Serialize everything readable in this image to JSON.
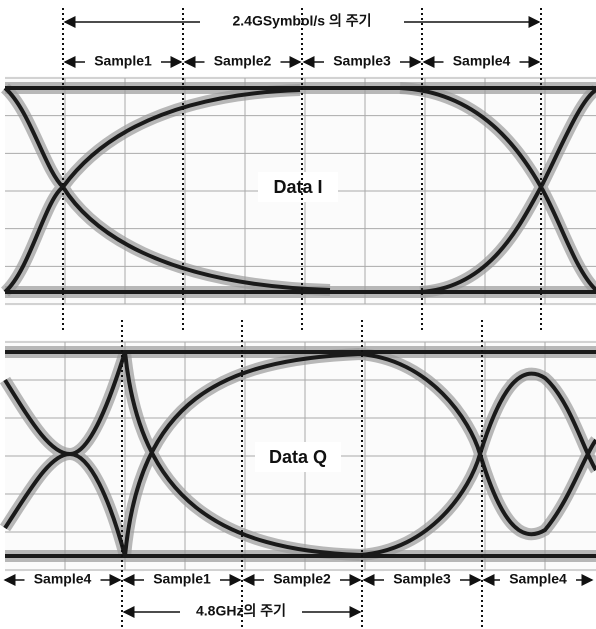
{
  "period_top": "2.4GSymbol/s 의 주기",
  "top_samples": [
    "Sample1",
    "Sample2",
    "Sample3",
    "Sample4"
  ],
  "eye_top_label": "Data I",
  "eye_bottom_label": "Data Q",
  "bottom_samples": [
    "Sample4",
    "Sample1",
    "Sample2",
    "Sample3",
    "Sample4"
  ],
  "period_bottom": "4.8GHz의 주기"
}
